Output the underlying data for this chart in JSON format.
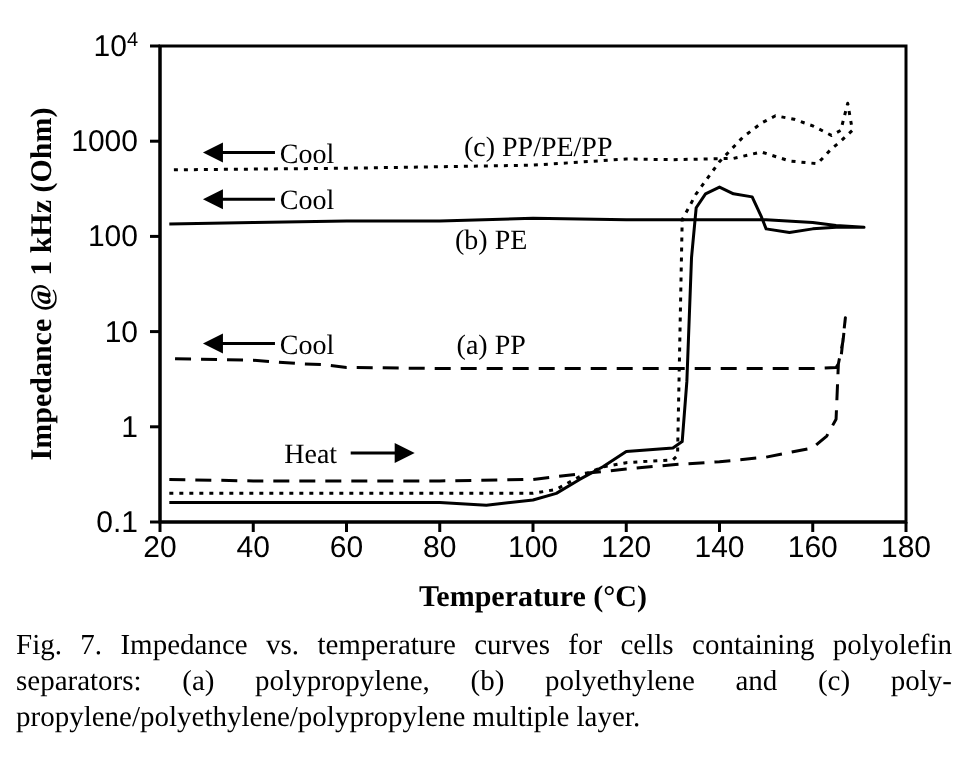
{
  "chart_data": {
    "type": "line",
    "xlabel": "Temperature (°C)",
    "ylabel": "Impedance @ 1 kHz (Ohm)",
    "log": "y",
    "xlim": [
      20,
      180
    ],
    "xticks": [
      20,
      40,
      60,
      80,
      100,
      120,
      140,
      160,
      180
    ],
    "ylim": [
      0.1,
      10000
    ],
    "yticks": [
      0.1,
      1,
      10,
      100,
      1000,
      {
        "value": 10000,
        "label": "10$^{4}$"
      }
    ],
    "marker": "none",
    "series": [
      {
        "color": "#000000",
        "line_style": "dashed",
        "x": [
          22,
          40,
          60,
          80,
          100,
          110,
          120,
          130,
          140,
          150,
          160,
          163,
          165,
          165.5,
          166.5,
          167,
          166,
          165,
          160,
          140,
          120,
          100,
          80,
          60,
          55,
          50,
          40,
          22
        ],
        "values": [
          0.28,
          0.27,
          0.27,
          0.27,
          0.28,
          0.32,
          0.36,
          0.4,
          0.43,
          0.48,
          0.6,
          0.8,
          1.2,
          4.6,
          8,
          14,
          5,
          4.2,
          4.1,
          4.1,
          4.1,
          4.1,
          4.1,
          4.2,
          4.5,
          4.6,
          5,
          5.2
        ]
      },
      {
        "color": "#000000",
        "line_style": "solid",
        "x": [
          22,
          60,
          80,
          90,
          100,
          105,
          110,
          115,
          120,
          130,
          132,
          133,
          134,
          135,
          137,
          140,
          143,
          147,
          149,
          150,
          155,
          160,
          165,
          171,
          165,
          160,
          150,
          140,
          120,
          100,
          80,
          60,
          40,
          22
        ],
        "values": [
          0.16,
          0.16,
          0.16,
          0.15,
          0.17,
          0.2,
          0.28,
          0.38,
          0.55,
          0.6,
          0.7,
          3,
          60,
          200,
          280,
          330,
          280,
          260,
          160,
          120,
          110,
          120,
          125,
          125,
          130,
          140,
          150,
          150,
          150,
          155,
          145,
          145,
          140,
          135
        ]
      },
      {
        "color": "#000000",
        "line_style": "dotted",
        "x": [
          22,
          60,
          100,
          105,
          110,
          115,
          120,
          130,
          131,
          132,
          135,
          140,
          145,
          149,
          152,
          156,
          160,
          164,
          166,
          167.5,
          168.5,
          166,
          164,
          161,
          155,
          149,
          143,
          130,
          120,
          100,
          60,
          22
        ],
        "values": [
          0.2,
          0.2,
          0.2,
          0.22,
          0.3,
          0.38,
          0.42,
          0.45,
          0.5,
          150,
          280,
          610,
          1100,
          1550,
          1850,
          1700,
          1450,
          1150,
          1300,
          2500,
          1300,
          1000,
          830,
          580,
          620,
          770,
          660,
          640,
          650,
          560,
          520,
          500
        ]
      }
    ],
    "annotations": [
      "(c) PP/PE/PP",
      "Cool",
      "Cool",
      "(b) PE",
      "Cool",
      "(a) PP",
      "Heat",
      "Fig. 7. Impedance vs. temperature curves for cells containing polyolefin separators: (a) polypropylene, (b) polyethylene and (c) poly-propylene/polyethylene/polypropylene multiple layer."
    ]
  }
}
